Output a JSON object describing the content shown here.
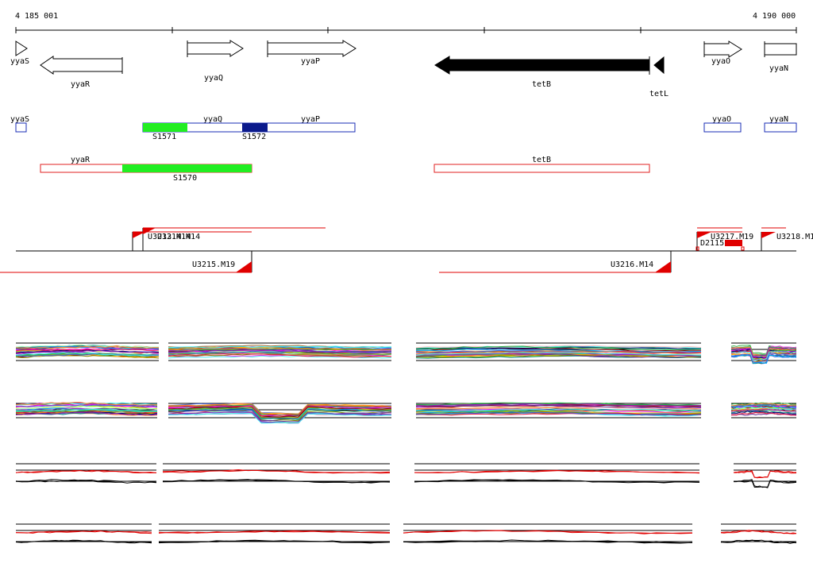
{
  "ruler": {
    "start_label": "4 185 001",
    "end_label": "4 190 000"
  },
  "genes": [
    {
      "name": "yyaS",
      "strand": "+",
      "style": "outline"
    },
    {
      "name": "yyaR",
      "strand": "-",
      "style": "outline"
    },
    {
      "name": "yyaQ",
      "strand": "+",
      "style": "outline"
    },
    {
      "name": "yyaP",
      "strand": "+",
      "style": "outline"
    },
    {
      "name": "tetB",
      "strand": "-",
      "style": "filled"
    },
    {
      "name": "tetL",
      "strand": "-",
      "style": "filled"
    },
    {
      "name": "yyaO",
      "strand": "+",
      "style": "outline"
    },
    {
      "name": "yyaN",
      "strand": "+",
      "style": "outline"
    }
  ],
  "feature_labels": {
    "yyaS": "yyaS",
    "yyaQ": "yyaQ",
    "yyaP": "yyaP",
    "yyaO": "yyaO",
    "yyaN": "yyaN",
    "yyaR": "yyaR",
    "tetB": "tetB",
    "S1571": "S1571",
    "S1572": "S1572",
    "S1570": "S1570"
  },
  "transcripts": {
    "top_overlap": "U3213.M14",
    "top_overlap_2": "U3214.M14",
    "u3217": "U3217.M19",
    "d2115": "D2115",
    "u3218": "U3218.M1",
    "u3215": "U3215.M19",
    "u3216": "U3216.M14"
  },
  "colors": {
    "gene_outline": "#000000",
    "gene_filled": "#000000",
    "blue_box": "#1a2db5",
    "red_box": "#e02020",
    "green_block": "#22ee22",
    "navy_block": "#0b1a8c",
    "transcript": "#e00000"
  }
}
